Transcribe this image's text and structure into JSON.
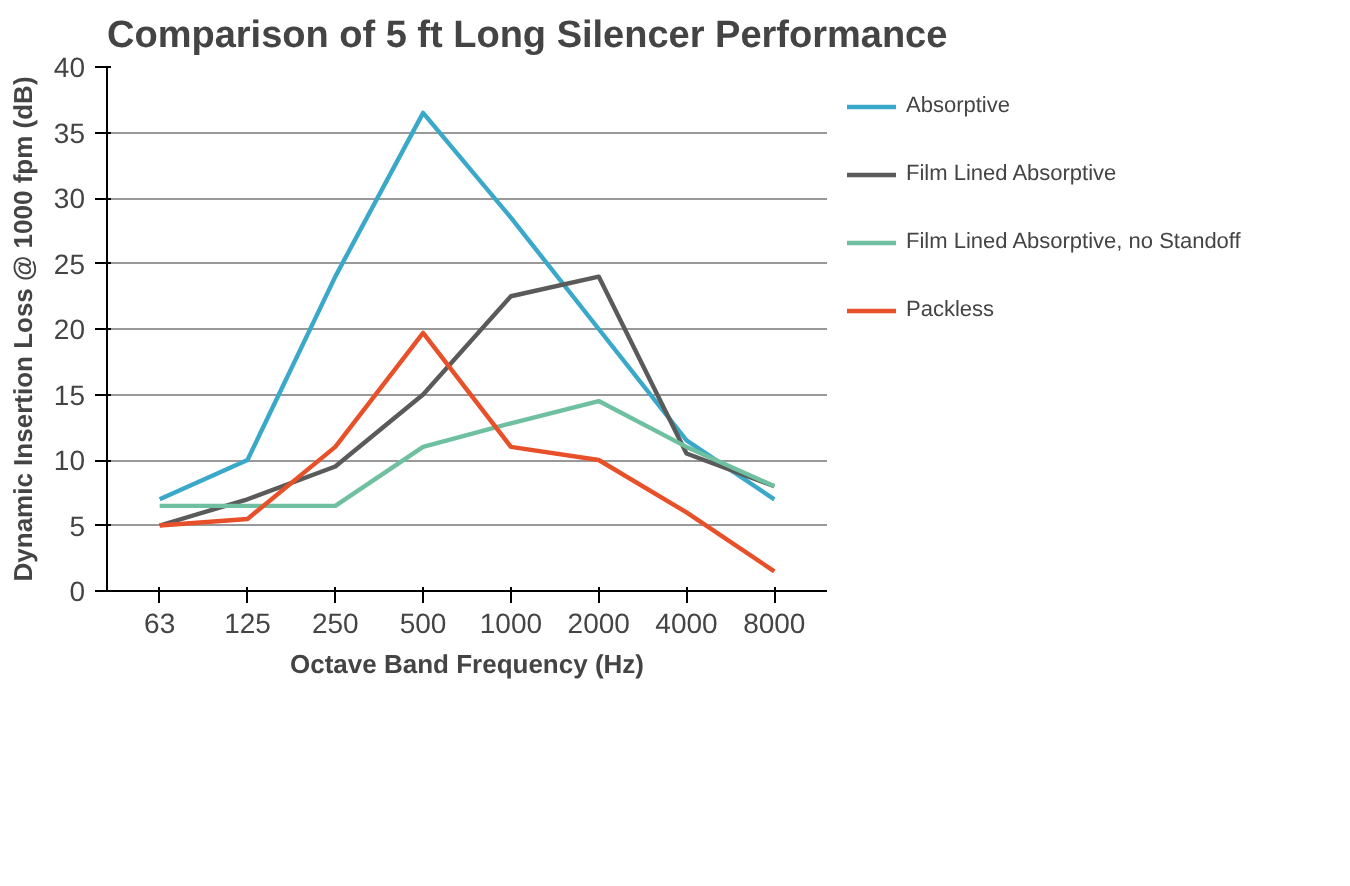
{
  "chart_data": {
    "type": "line",
    "title": "Comparison of 5 ft Long Silencer Performance",
    "xlabel": "Octave Band Frequency (Hz)",
    "ylabel": "Dynamic Insertion Loss @ 1000 fpm (dB)",
    "categories": [
      "63",
      "125",
      "250",
      "500",
      "1000",
      "2000",
      "4000",
      "8000"
    ],
    "series": [
      {
        "name": "Absorptive",
        "color": "#3aa8c8",
        "values": [
          7,
          10,
          24,
          36.5,
          28.5,
          20,
          11.5,
          7
        ]
      },
      {
        "name": "Film Lined Absorptive",
        "color": "#5a5a5a",
        "values": [
          5,
          7,
          9.5,
          15,
          22.5,
          24,
          10.5,
          8
        ]
      },
      {
        "name": "Film Lined Absorptive, no Standoff",
        "color": "#6fc0a0",
        "values": [
          6.5,
          6.5,
          6.5,
          11,
          12.8,
          14.5,
          11,
          8
        ]
      },
      {
        "name": "Packless",
        "color": "#e8502a",
        "values": [
          5,
          5.5,
          11,
          19.7,
          11,
          10,
          6,
          1.5
        ]
      }
    ],
    "ylim": [
      0,
      40
    ],
    "yticks": [
      0,
      5,
      10,
      15,
      20,
      25,
      30,
      35,
      40
    ],
    "grid": "y",
    "legend": "right",
    "marker": "none",
    "line_style": "solid"
  }
}
